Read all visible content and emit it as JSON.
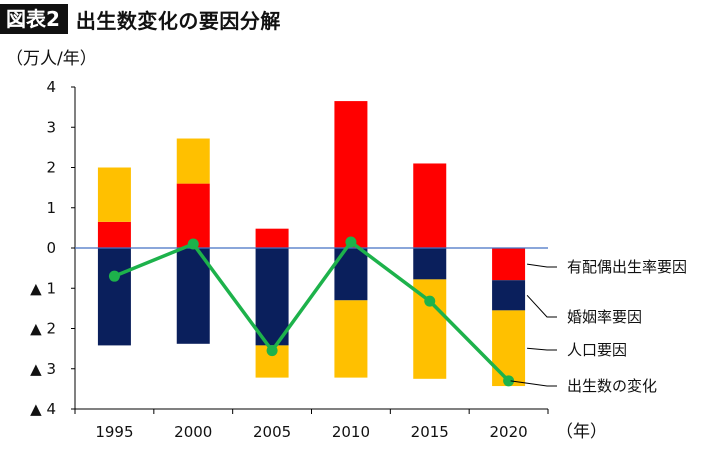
{
  "header": {
    "badge": "図表2",
    "title": "出生数変化の要因分解"
  },
  "colors": {
    "marital": "#ff0000",
    "rate": "#0a1f5c",
    "population": "#ffc000",
    "line": "#1db24b",
    "zero_line": "#4472c4"
  },
  "chart_data": {
    "type": "bar",
    "subtype": "stacked-bar-with-line",
    "title": "出生数変化の要因分解",
    "ylabel": "（万人/年）",
    "xlabel": "（年）",
    "categories": [
      "1995",
      "2000",
      "2005",
      "2010",
      "2015",
      "2020"
    ],
    "ylim": [
      -4,
      4
    ],
    "yticks": [
      4,
      3,
      2,
      1,
      0,
      -1,
      -2,
      -3,
      -4
    ],
    "ytick_labels": [
      "4",
      "3",
      "2",
      "1",
      "0",
      "▲ 1",
      "▲ 2",
      "▲ 3",
      "▲ 4"
    ],
    "grid": false,
    "legend": "right",
    "series": [
      {
        "name": "有配偶出生率要因",
        "kind": "bar",
        "values": [
          0.65,
          1.6,
          0.48,
          3.65,
          2.1,
          -0.8
        ]
      },
      {
        "name": "婚姻率要因",
        "kind": "bar",
        "values": [
          -2.42,
          -2.38,
          -2.42,
          -1.3,
          -0.78,
          -0.75
        ]
      },
      {
        "name": "人口要因",
        "kind": "bar",
        "values": [
          1.35,
          1.12,
          -0.8,
          -1.92,
          -2.47,
          -1.88
        ]
      },
      {
        "name": "出生数の変化",
        "kind": "line",
        "values": [
          -0.7,
          0.1,
          -2.55,
          0.15,
          -1.32,
          -3.3
        ]
      }
    ]
  }
}
